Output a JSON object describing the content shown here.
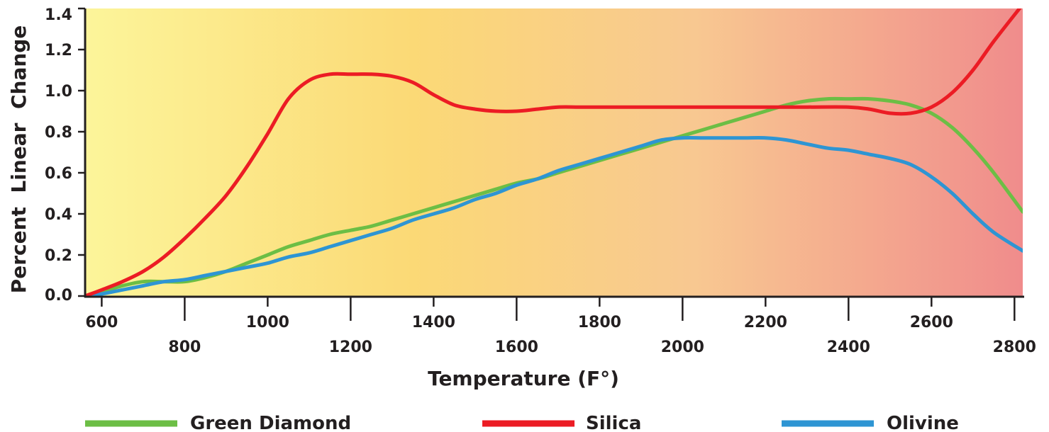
{
  "chart_data": {
    "type": "line",
    "xlabel": "Temperature (F°)",
    "ylabel": "Percent  Linear  Change",
    "xlim": [
      560,
      2820
    ],
    "ylim": [
      0.0,
      1.4
    ],
    "x_ticks": [
      600,
      800,
      1000,
      1200,
      1400,
      1600,
      1800,
      2000,
      2200,
      2400,
      2600,
      2800
    ],
    "y_ticks": [
      "0.0",
      "0.2",
      "0.4",
      "0.6",
      "0.8",
      "1.0",
      "1.2",
      "1.4"
    ],
    "y_tick_values": [
      0.0,
      0.2,
      0.4,
      0.6,
      0.8,
      1.0,
      1.2,
      1.4
    ],
    "background": "gradient yellow to red",
    "grid": false,
    "legend_position": "bottom",
    "series": [
      {
        "name": "Green Diamond",
        "color": "#6cbe45",
        "x": [
          560,
          600,
          650,
          700,
          750,
          800,
          850,
          900,
          950,
          1000,
          1050,
          1100,
          1150,
          1200,
          1250,
          1300,
          1350,
          1400,
          1450,
          1500,
          1550,
          1600,
          1650,
          1700,
          1750,
          1800,
          1850,
          1900,
          1950,
          2000,
          2050,
          2100,
          2150,
          2200,
          2250,
          2300,
          2350,
          2400,
          2450,
          2500,
          2550,
          2600,
          2650,
          2700,
          2750,
          2820
        ],
        "y": [
          0.0,
          0.02,
          0.05,
          0.07,
          0.07,
          0.07,
          0.09,
          0.12,
          0.16,
          0.2,
          0.24,
          0.27,
          0.3,
          0.32,
          0.34,
          0.37,
          0.4,
          0.43,
          0.46,
          0.49,
          0.52,
          0.55,
          0.57,
          0.6,
          0.63,
          0.66,
          0.69,
          0.72,
          0.75,
          0.78,
          0.81,
          0.84,
          0.87,
          0.9,
          0.93,
          0.95,
          0.96,
          0.96,
          0.96,
          0.95,
          0.93,
          0.89,
          0.82,
          0.72,
          0.6,
          0.41
        ]
      },
      {
        "name": "Silica",
        "color": "#ec1c24",
        "x": [
          560,
          600,
          650,
          700,
          750,
          800,
          850,
          900,
          950,
          1000,
          1050,
          1100,
          1150,
          1200,
          1250,
          1300,
          1350,
          1400,
          1450,
          1500,
          1550,
          1600,
          1650,
          1700,
          1750,
          1800,
          1900,
          2000,
          2100,
          2200,
          2300,
          2400,
          2450,
          2500,
          2550,
          2600,
          2650,
          2700,
          2750,
          2820
        ],
        "y": [
          0.0,
          0.03,
          0.07,
          0.12,
          0.19,
          0.28,
          0.38,
          0.49,
          0.63,
          0.79,
          0.96,
          1.05,
          1.08,
          1.08,
          1.08,
          1.07,
          1.04,
          0.98,
          0.93,
          0.91,
          0.9,
          0.9,
          0.91,
          0.92,
          0.92,
          0.92,
          0.92,
          0.92,
          0.92,
          0.92,
          0.92,
          0.92,
          0.91,
          0.89,
          0.89,
          0.92,
          0.99,
          1.1,
          1.24,
          1.42
        ]
      },
      {
        "name": "Olivine",
        "color": "#2e95d3",
        "x": [
          560,
          600,
          650,
          700,
          750,
          800,
          850,
          900,
          950,
          1000,
          1050,
          1100,
          1150,
          1200,
          1250,
          1300,
          1350,
          1400,
          1450,
          1500,
          1550,
          1600,
          1650,
          1700,
          1750,
          1800,
          1850,
          1900,
          1950,
          2000,
          2050,
          2100,
          2150,
          2200,
          2250,
          2300,
          2350,
          2400,
          2450,
          2500,
          2550,
          2600,
          2650,
          2700,
          2750,
          2820
        ],
        "y": [
          0.0,
          0.01,
          0.03,
          0.05,
          0.07,
          0.08,
          0.1,
          0.12,
          0.14,
          0.16,
          0.19,
          0.21,
          0.24,
          0.27,
          0.3,
          0.33,
          0.37,
          0.4,
          0.43,
          0.47,
          0.5,
          0.54,
          0.57,
          0.61,
          0.64,
          0.67,
          0.7,
          0.73,
          0.76,
          0.77,
          0.77,
          0.77,
          0.77,
          0.77,
          0.76,
          0.74,
          0.72,
          0.71,
          0.69,
          0.67,
          0.64,
          0.58,
          0.5,
          0.4,
          0.31,
          0.22
        ]
      }
    ]
  }
}
